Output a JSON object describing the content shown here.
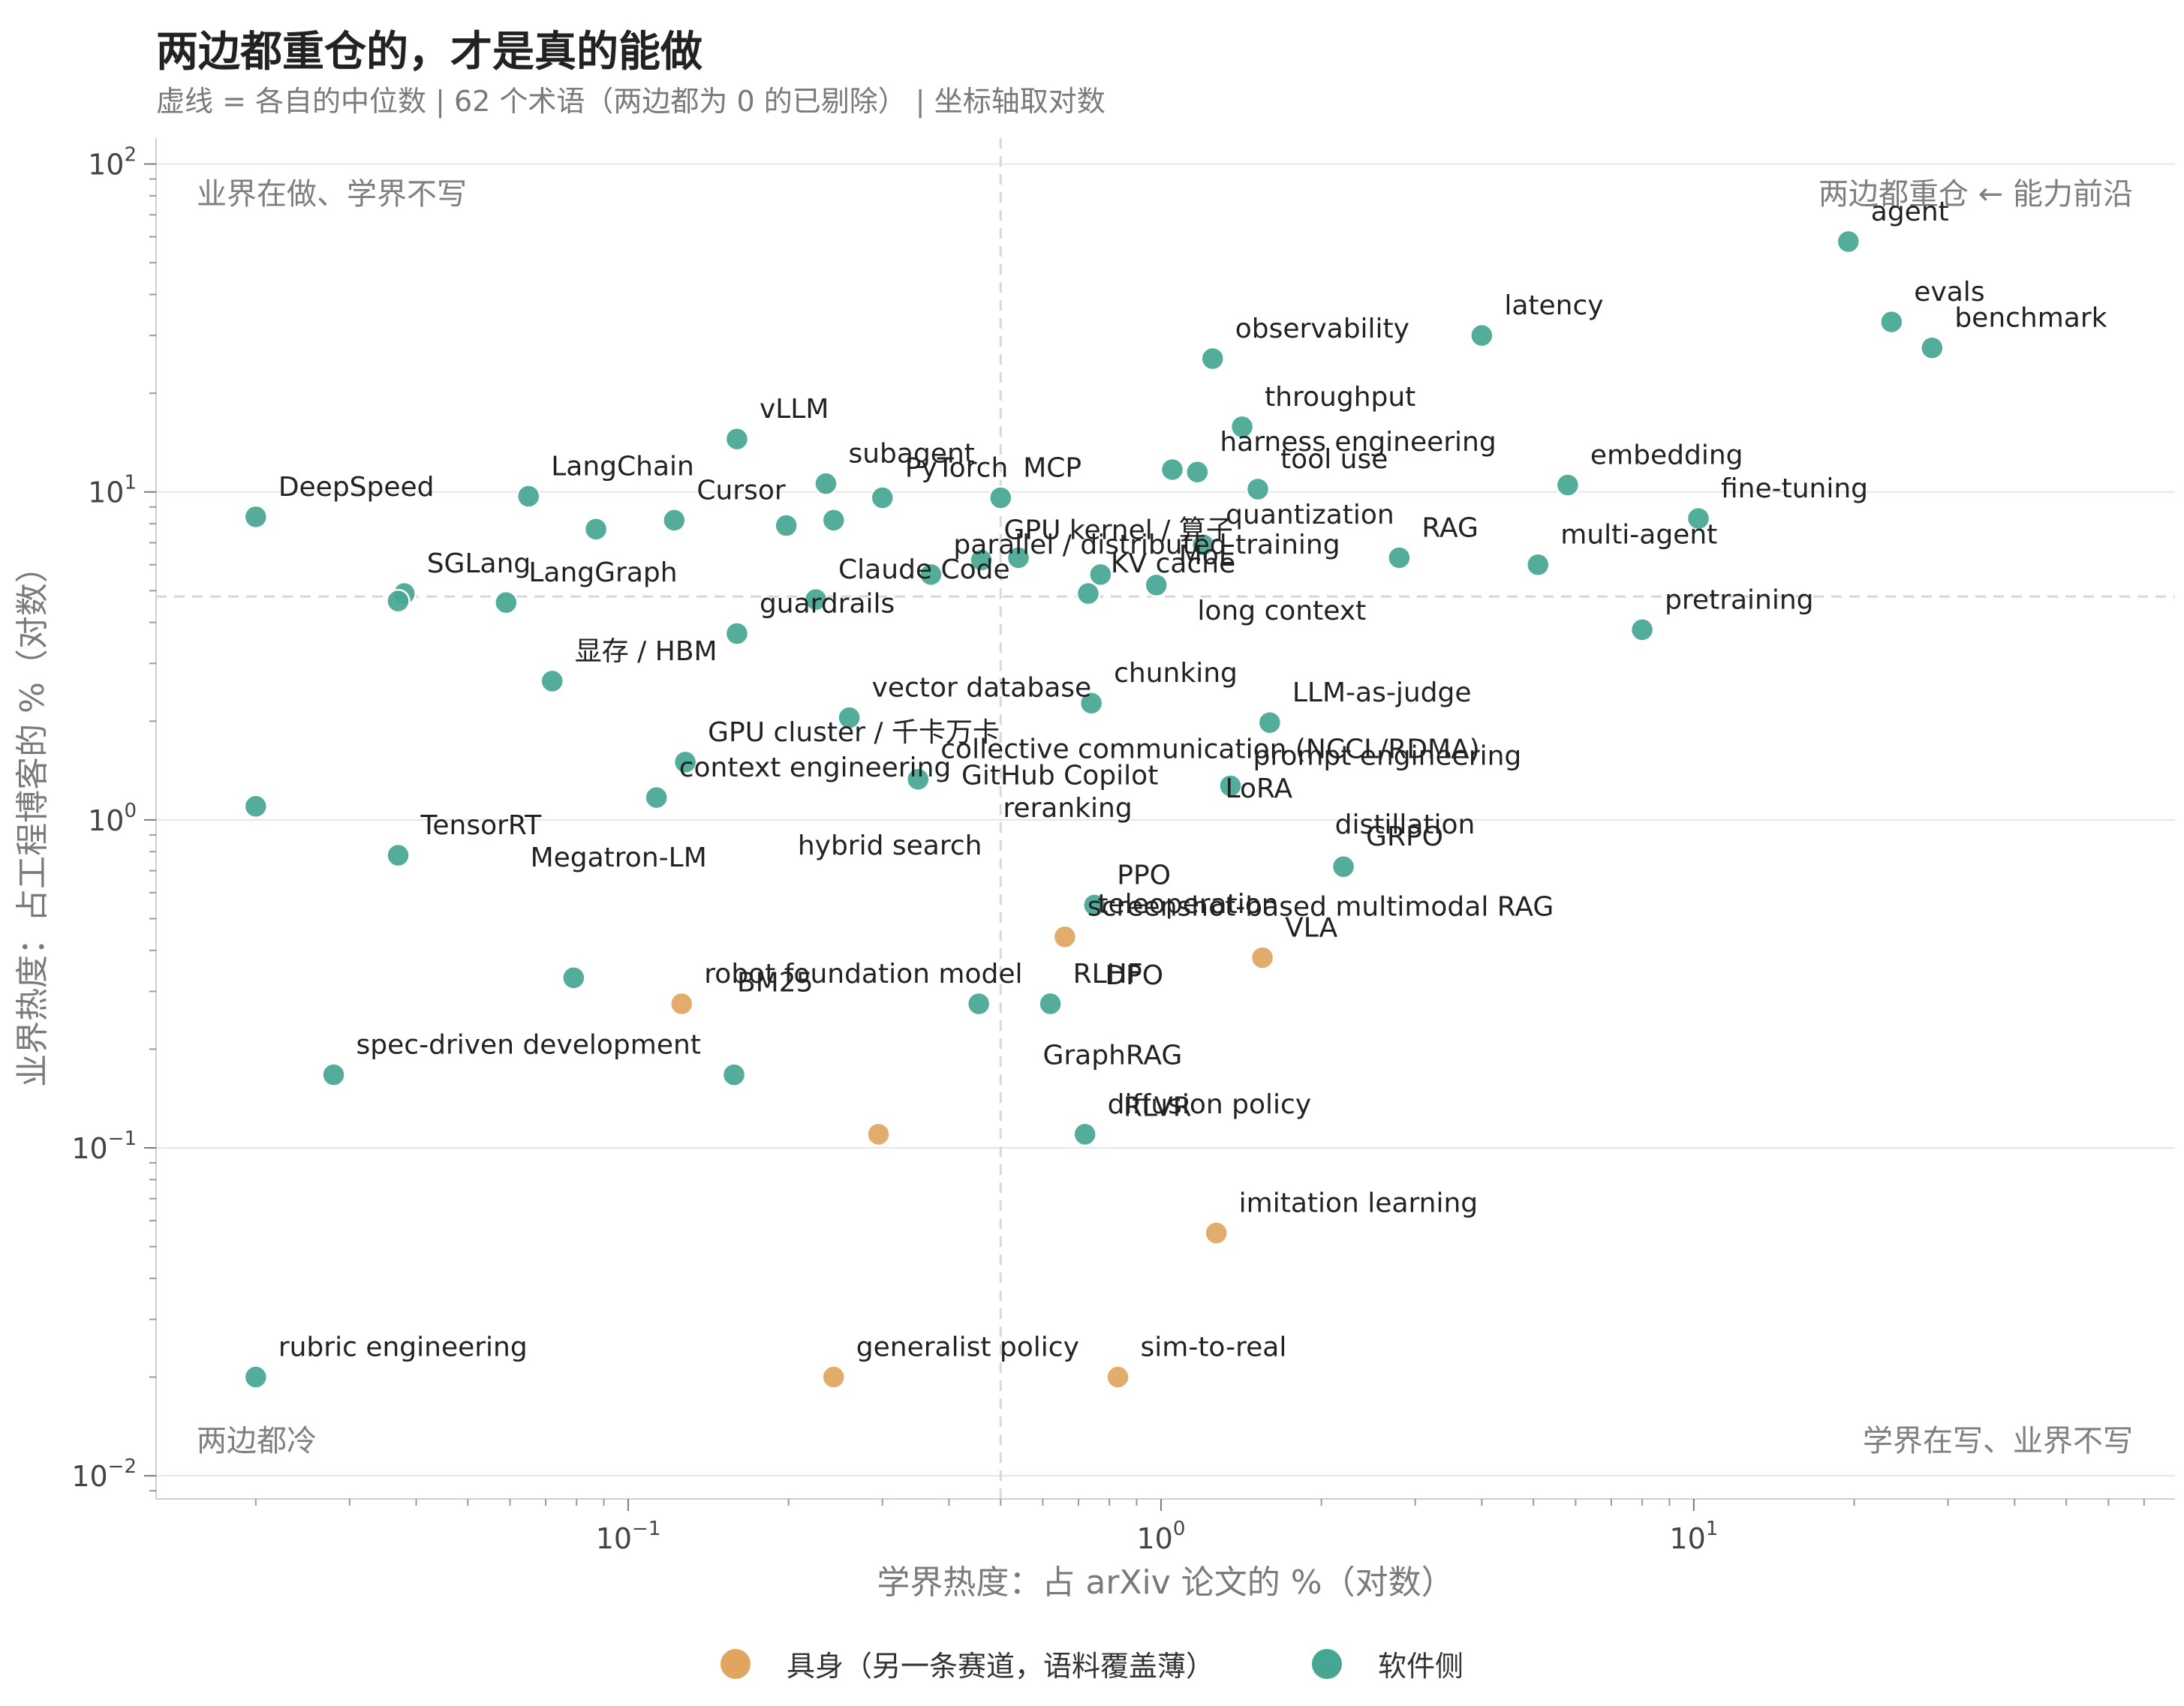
{
  "title": "两边都重仓的，才是真的能做",
  "subtitle": "虚线 = 各自的中位数 | 62 个术语（两边都为 0 的已剔除） | 坐标轴取对数",
  "colors": {
    "software": "#45a691",
    "embodied": "#e0a660",
    "grid": "#e6e6e6",
    "median": "#d8d8d8",
    "quadrant_text": "#7f7f7f"
  },
  "chart_data": {
    "type": "scatter",
    "x_scale": "log",
    "y_scale": "log",
    "xlabel": "学界热度：占 arXiv 论文的 %（对数）",
    "ylabel": "业界热度：占工程博客的 %（对数）",
    "xlim": [
      0.013,
      80
    ],
    "ylim": [
      0.0085,
      120
    ],
    "x_ticks": [
      {
        "value": 0.1,
        "base": "10",
        "exp": "−1"
      },
      {
        "value": 1,
        "base": "10",
        "exp": "0"
      },
      {
        "value": 10,
        "base": "10",
        "exp": "1"
      }
    ],
    "y_ticks": [
      {
        "value": 0.01,
        "base": "10",
        "exp": "−2"
      },
      {
        "value": 0.1,
        "base": "10",
        "exp": "−1"
      },
      {
        "value": 1,
        "base": "10",
        "exp": "0"
      },
      {
        "value": 10,
        "base": "10",
        "exp": "1"
      },
      {
        "value": 100,
        "base": "10",
        "exp": "2"
      }
    ],
    "grid": "horizontal",
    "median_x": 0.5,
    "median_y": 4.8,
    "quadrant_labels": {
      "top_left": "业界在做、学界不写",
      "top_right": "两边都重仓 ← 能力前沿",
      "bottom_left": "两边都冷",
      "bottom_right": "学界在写、业界不写"
    },
    "legend": {
      "position": "bottom-center",
      "items": [
        {
          "key": "embodied",
          "label": "具身（另一条赛道，语料覆盖薄）"
        },
        {
          "key": "software",
          "label": "软件侧"
        }
      ]
    },
    "points": [
      {
        "x": 19.5,
        "y": 58,
        "g": "software",
        "label": "agent"
      },
      {
        "x": 23.5,
        "y": 33,
        "g": "software",
        "label": "evals"
      },
      {
        "x": 28,
        "y": 27.5,
        "g": "software",
        "label": "benchmark"
      },
      {
        "x": 4,
        "y": 30,
        "g": "software",
        "label": "latency"
      },
      {
        "x": 1.25,
        "y": 25.5,
        "g": "software",
        "label": "observability"
      },
      {
        "x": 1.42,
        "y": 15.8,
        "g": "software",
        "label": "throughput"
      },
      {
        "x": 1.05,
        "y": 11.7,
        "g": "software",
        "label": ""
      },
      {
        "x": 1.17,
        "y": 11.5,
        "g": "software",
        "label": "harness engineering"
      },
      {
        "x": 1.52,
        "y": 10.2,
        "g": "software",
        "label": "tool use"
      },
      {
        "x": 5.8,
        "y": 10.5,
        "g": "software",
        "label": "embedding"
      },
      {
        "x": 10.2,
        "y": 8.3,
        "g": "software",
        "label": "fine-tuning"
      },
      {
        "x": 5.1,
        "y": 6,
        "g": "software",
        "label": "multi-agent"
      },
      {
        "x": 2.8,
        "y": 6.3,
        "g": "software",
        "label": "RAG"
      },
      {
        "x": 1.2,
        "y": 6.9,
        "g": "software",
        "label": "quantization"
      },
      {
        "x": 8,
        "y": 3.8,
        "g": "software",
        "label": "pretraining"
      },
      {
        "x": 0.5,
        "y": 9.6,
        "g": "software",
        "label": "MCP"
      },
      {
        "x": 0.16,
        "y": 14.5,
        "g": "software",
        "label": "vLLM"
      },
      {
        "x": 0.3,
        "y": 9.6,
        "g": "software",
        "label": "PyTorch"
      },
      {
        "x": 0.235,
        "y": 10.6,
        "g": "software",
        "label": "subagent"
      },
      {
        "x": 0.065,
        "y": 9.7,
        "g": "software",
        "label": "LangChain"
      },
      {
        "x": 0.02,
        "y": 8.4,
        "g": "software",
        "label": "DeepSpeed"
      },
      {
        "x": 0.122,
        "y": 8.2,
        "g": "software",
        "label": "Cursor"
      },
      {
        "x": 0.087,
        "y": 7.7,
        "g": "software",
        "label": ""
      },
      {
        "x": 0.198,
        "y": 7.9,
        "g": "software",
        "label": ""
      },
      {
        "x": 0.243,
        "y": 8.2,
        "g": "software",
        "label": ""
      },
      {
        "x": 0.46,
        "y": 6.2,
        "g": "software",
        "label": "GPU kernel / 算子"
      },
      {
        "x": 0.54,
        "y": 6.3,
        "g": "software",
        "label": ""
      },
      {
        "x": 0.37,
        "y": 5.6,
        "g": "software",
        "label": "parallel / distributed training"
      },
      {
        "x": 0.77,
        "y": 5.6,
        "g": "software",
        "label": ""
      },
      {
        "x": 0.98,
        "y": 5.2,
        "g": "software",
        "label": "MoE"
      },
      {
        "x": 0.73,
        "y": 4.9,
        "g": "software",
        "label": "KV cache"
      },
      {
        "x": 0.225,
        "y": 4.7,
        "g": "software",
        "label": "Claude Code"
      },
      {
        "x": 0.038,
        "y": 4.9,
        "g": "software",
        "label": "SGLang"
      },
      {
        "x": 0.037,
        "y": 4.65,
        "g": "software",
        "label": ""
      },
      {
        "x": 0.059,
        "y": 4.6,
        "g": "software",
        "label": "LangGraph"
      },
      {
        "x": 0.16,
        "y": 3.7,
        "g": "software",
        "label": "guardrails"
      },
      {
        "x": 0.072,
        "y": 2.65,
        "g": "software",
        "label": "显存 / HBM"
      },
      {
        "x": 0.74,
        "y": 2.27,
        "g": "software",
        "label": "chunking"
      },
      {
        "x": 1.6,
        "y": 1.98,
        "g": "software",
        "label": "LLM-as-judge"
      },
      {
        "x": 0.26,
        "y": 2.05,
        "g": "software",
        "label": "vector database"
      },
      {
        "x": 0.128,
        "y": 1.5,
        "g": "software",
        "label": "GPU cluster / 千卡万卡"
      },
      {
        "x": 0.35,
        "y": 1.33,
        "g": "software",
        "label": "collective communication (NCCL/RDMA)"
      },
      {
        "x": 0.113,
        "y": 1.17,
        "g": "software",
        "label": "context engineering"
      },
      {
        "x": 1.35,
        "y": 1.27,
        "g": "software",
        "label": "prompt engineering"
      },
      {
        "x": 0.02,
        "y": 1.1,
        "g": "software",
        "label": ""
      },
      {
        "x": 0.037,
        "y": 0.78,
        "g": "software",
        "label": "TensorRT"
      },
      {
        "x": 2.2,
        "y": 0.72,
        "g": "software",
        "label": "GRPO"
      },
      {
        "x": 0.75,
        "y": 0.55,
        "g": "software",
        "label": "PPO"
      },
      {
        "x": 0.079,
        "y": 0.33,
        "g": "software",
        "label": ""
      },
      {
        "x": 0.455,
        "y": 0.275,
        "g": "software",
        "label": ""
      },
      {
        "x": 0.62,
        "y": 0.275,
        "g": "software",
        "label": "RLHF"
      },
      {
        "x": 0.028,
        "y": 0.167,
        "g": "software",
        "label": "spec-driven development"
      },
      {
        "x": 0.158,
        "y": 0.167,
        "g": "software",
        "label": ""
      },
      {
        "x": 0.72,
        "y": 0.11,
        "g": "software",
        "label": "diffusion policy"
      },
      {
        "x": 0.02,
        "y": 0.02,
        "g": "software",
        "label": "rubric engineering"
      },
      {
        "x": 0.66,
        "y": 0.44,
        "g": "embodied",
        "label": "screenshot-based multimodal RAG"
      },
      {
        "x": 1.55,
        "y": 0.38,
        "g": "embodied",
        "label": "VLA"
      },
      {
        "x": 0.126,
        "y": 0.275,
        "g": "embodied",
        "label": "robot foundation model"
      },
      {
        "x": 0.295,
        "y": 0.11,
        "g": "embodied",
        "label": ""
      },
      {
        "x": 1.27,
        "y": 0.055,
        "g": "embodied",
        "label": "imitation learning"
      },
      {
        "x": 0.243,
        "y": 0.02,
        "g": "embodied",
        "label": "generalist policy"
      },
      {
        "x": 0.83,
        "y": 0.02,
        "g": "embodied",
        "label": "sim-to-real"
      }
    ],
    "floating_labels": [
      {
        "x": 0.0655,
        "y": 0.72,
        "label": "Megatron-LM"
      },
      {
        "x": 0.6,
        "y": 0.18,
        "label": "GraphRAG"
      },
      {
        "x": 1.32,
        "y": 1.17,
        "label": "LoRA"
      },
      {
        "x": 2.12,
        "y": 0.91,
        "label": "distillation"
      },
      {
        "x": 1.17,
        "y": 4.08,
        "label": "long context"
      },
      {
        "x": 0.16,
        "y": 0.3,
        "label": "BM25"
      },
      {
        "x": 0.208,
        "y": 0.785,
        "label": "hybrid search"
      },
      {
        "x": 0.422,
        "y": 1.285,
        "label": "GitHub Copilot"
      },
      {
        "x": 0.505,
        "y": 1.02,
        "label": "reranking"
      },
      {
        "x": 0.76,
        "y": 0.52,
        "label": "teleoperation"
      },
      {
        "x": 0.785,
        "y": 0.315,
        "label": "DPO"
      },
      {
        "x": 0.85,
        "y": 0.125,
        "label": "RLVR"
      }
    ]
  }
}
